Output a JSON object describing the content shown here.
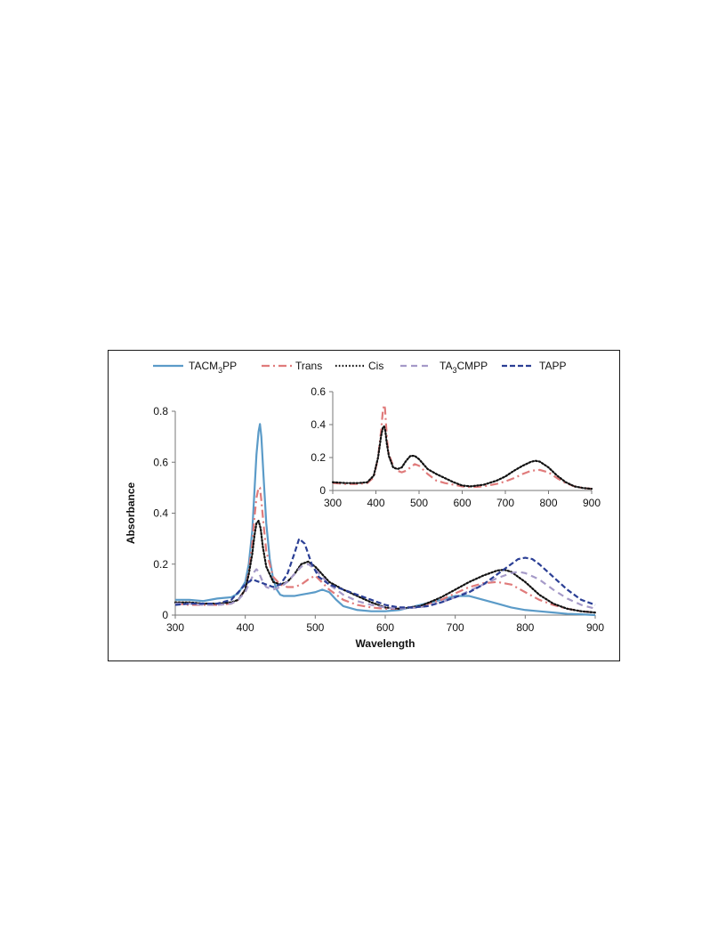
{
  "chart_data": [
    {
      "id": "main",
      "type": "line",
      "xlabel": "Wavelength",
      "ylabel": "Absorbance",
      "xlim": [
        300,
        900
      ],
      "ylim": [
        0,
        0.8
      ],
      "xticks": [
        300,
        400,
        500,
        600,
        700,
        800,
        900
      ],
      "yticks": [
        0,
        0.2,
        0.4,
        0.6,
        0.8
      ],
      "grid": false,
      "legend": "top",
      "series": [
        {
          "key": "tacm3pp",
          "name": "TACM",
          "sub": "3",
          "name_tail": "PP",
          "color": "#5b9bc8",
          "dash": "solid",
          "x": [
            300,
            320,
            340,
            360,
            380,
            390,
            400,
            405,
            410,
            413,
            416,
            419,
            421,
            423,
            426,
            430,
            435,
            440,
            445,
            450,
            455,
            460,
            470,
            480,
            490,
            500,
            510,
            520,
            530,
            540,
            560,
            580,
            600,
            620,
            650,
            680,
            700,
            720,
            740,
            760,
            780,
            800,
            820,
            840,
            860,
            880,
            900
          ],
          "y": [
            0.06,
            0.06,
            0.055,
            0.065,
            0.07,
            0.085,
            0.13,
            0.2,
            0.33,
            0.48,
            0.63,
            0.72,
            0.75,
            0.7,
            0.55,
            0.36,
            0.22,
            0.14,
            0.1,
            0.08,
            0.075,
            0.075,
            0.075,
            0.08,
            0.085,
            0.09,
            0.1,
            0.09,
            0.06,
            0.035,
            0.02,
            0.015,
            0.015,
            0.02,
            0.04,
            0.06,
            0.075,
            0.075,
            0.06,
            0.045,
            0.03,
            0.02,
            0.015,
            0.01,
            0.005,
            0.003,
            0.0
          ]
        },
        {
          "key": "trans",
          "name": "Trans",
          "color": "#e07b7b",
          "dash": "dashdot",
          "x": [
            300,
            320,
            340,
            360,
            380,
            390,
            400,
            405,
            410,
            413,
            416,
            419,
            421,
            423,
            426,
            430,
            440,
            450,
            460,
            470,
            480,
            490,
            500,
            520,
            540,
            560,
            580,
            600,
            620,
            650,
            680,
            700,
            720,
            740,
            760,
            780,
            800,
            820,
            840,
            860,
            880,
            900
          ],
          "y": [
            0.045,
            0.04,
            0.04,
            0.04,
            0.045,
            0.06,
            0.1,
            0.17,
            0.28,
            0.38,
            0.46,
            0.5,
            0.5,
            0.45,
            0.36,
            0.25,
            0.15,
            0.12,
            0.11,
            0.11,
            0.12,
            0.14,
            0.155,
            0.1,
            0.06,
            0.04,
            0.03,
            0.025,
            0.025,
            0.035,
            0.06,
            0.085,
            0.11,
            0.125,
            0.13,
            0.12,
            0.09,
            0.06,
            0.04,
            0.025,
            0.015,
            0.01
          ]
        },
        {
          "key": "cis",
          "name": "Cis",
          "color": "#111111",
          "dash": "dotted",
          "x": [
            300,
            320,
            340,
            360,
            380,
            390,
            400,
            405,
            410,
            413,
            416,
            419,
            422,
            425,
            430,
            440,
            450,
            460,
            470,
            480,
            490,
            500,
            520,
            540,
            560,
            580,
            600,
            620,
            650,
            680,
            700,
            720,
            740,
            760,
            770,
            780,
            800,
            820,
            840,
            860,
            880,
            900
          ],
          "y": [
            0.05,
            0.05,
            0.045,
            0.045,
            0.05,
            0.06,
            0.1,
            0.16,
            0.24,
            0.31,
            0.36,
            0.37,
            0.34,
            0.27,
            0.19,
            0.13,
            0.12,
            0.13,
            0.16,
            0.2,
            0.21,
            0.19,
            0.13,
            0.1,
            0.075,
            0.05,
            0.03,
            0.025,
            0.035,
            0.07,
            0.1,
            0.13,
            0.155,
            0.175,
            0.178,
            0.17,
            0.13,
            0.08,
            0.045,
            0.025,
            0.015,
            0.01
          ]
        },
        {
          "key": "ta3cmpp",
          "name": "TA",
          "sub": "3",
          "name_tail": "CMPP",
          "color": "#a59ac8",
          "dash": "dashed",
          "x": [
            300,
            320,
            340,
            360,
            380,
            390,
            400,
            405,
            410,
            413,
            416,
            419,
            422,
            425,
            430,
            440,
            450,
            460,
            470,
            480,
            490,
            500,
            510,
            520,
            540,
            560,
            580,
            600,
            620,
            650,
            680,
            700,
            720,
            740,
            760,
            780,
            790,
            800,
            820,
            840,
            860,
            880,
            900
          ],
          "y": [
            0.045,
            0.045,
            0.04,
            0.04,
            0.045,
            0.06,
            0.09,
            0.12,
            0.15,
            0.17,
            0.18,
            0.17,
            0.15,
            0.13,
            0.11,
            0.1,
            0.11,
            0.13,
            0.16,
            0.19,
            0.2,
            0.18,
            0.15,
            0.12,
            0.08,
            0.055,
            0.04,
            0.03,
            0.025,
            0.03,
            0.05,
            0.07,
            0.095,
            0.12,
            0.145,
            0.165,
            0.17,
            0.165,
            0.14,
            0.1,
            0.065,
            0.04,
            0.025
          ]
        },
        {
          "key": "tapp",
          "name": "TAPP",
          "color": "#2b3f95",
          "dash": "longdash",
          "x": [
            300,
            320,
            340,
            360,
            380,
            400,
            410,
            420,
            430,
            440,
            450,
            460,
            470,
            477,
            485,
            495,
            505,
            520,
            540,
            560,
            580,
            600,
            620,
            640,
            660,
            680,
            700,
            720,
            740,
            760,
            780,
            790,
            800,
            810,
            820,
            840,
            860,
            880,
            900
          ],
          "y": [
            0.04,
            0.045,
            0.045,
            0.045,
            0.06,
            0.12,
            0.14,
            0.13,
            0.12,
            0.11,
            0.12,
            0.16,
            0.24,
            0.3,
            0.28,
            0.2,
            0.15,
            0.12,
            0.1,
            0.08,
            0.06,
            0.04,
            0.03,
            0.03,
            0.035,
            0.05,
            0.07,
            0.09,
            0.12,
            0.16,
            0.2,
            0.22,
            0.225,
            0.22,
            0.2,
            0.15,
            0.1,
            0.06,
            0.04
          ]
        }
      ]
    },
    {
      "id": "inset",
      "type": "line",
      "xlim": [
        300,
        900
      ],
      "ylim": [
        0,
        0.6
      ],
      "xticks": [
        300,
        400,
        500,
        600,
        700,
        800,
        900
      ],
      "yticks": [
        0,
        0.2,
        0.4,
        0.6
      ],
      "grid": false,
      "series": [
        {
          "key": "trans",
          "name": "Trans",
          "color": "#e07b7b",
          "dash": "dashdot",
          "x": [
            300,
            330,
            360,
            380,
            395,
            405,
            412,
            416,
            419,
            421,
            423,
            426,
            430,
            440,
            450,
            460,
            470,
            480,
            490,
            500,
            520,
            540,
            560,
            580,
            600,
            620,
            650,
            680,
            700,
            720,
            740,
            760,
            780,
            800,
            820,
            840,
            860,
            880,
            900
          ],
          "y": [
            0.045,
            0.04,
            0.04,
            0.045,
            0.08,
            0.2,
            0.36,
            0.48,
            0.52,
            0.5,
            0.42,
            0.3,
            0.22,
            0.15,
            0.12,
            0.11,
            0.12,
            0.14,
            0.16,
            0.15,
            0.1,
            0.06,
            0.045,
            0.035,
            0.025,
            0.02,
            0.025,
            0.04,
            0.055,
            0.075,
            0.1,
            0.12,
            0.125,
            0.11,
            0.075,
            0.045,
            0.025,
            0.015,
            0.01
          ]
        },
        {
          "key": "cis",
          "name": "Cis",
          "color": "#111111",
          "dash": "dotted",
          "x": [
            300,
            330,
            360,
            380,
            395,
            405,
            412,
            416,
            419,
            422,
            425,
            430,
            440,
            450,
            460,
            470,
            480,
            490,
            500,
            520,
            540,
            560,
            580,
            600,
            620,
            650,
            680,
            700,
            720,
            740,
            760,
            770,
            780,
            800,
            820,
            840,
            860,
            880,
            900
          ],
          "y": [
            0.05,
            0.045,
            0.045,
            0.05,
            0.09,
            0.2,
            0.33,
            0.38,
            0.39,
            0.36,
            0.29,
            0.21,
            0.14,
            0.13,
            0.14,
            0.18,
            0.21,
            0.21,
            0.19,
            0.13,
            0.1,
            0.075,
            0.05,
            0.03,
            0.025,
            0.035,
            0.06,
            0.085,
            0.12,
            0.15,
            0.175,
            0.18,
            0.175,
            0.14,
            0.09,
            0.05,
            0.025,
            0.015,
            0.01
          ]
        }
      ]
    }
  ]
}
